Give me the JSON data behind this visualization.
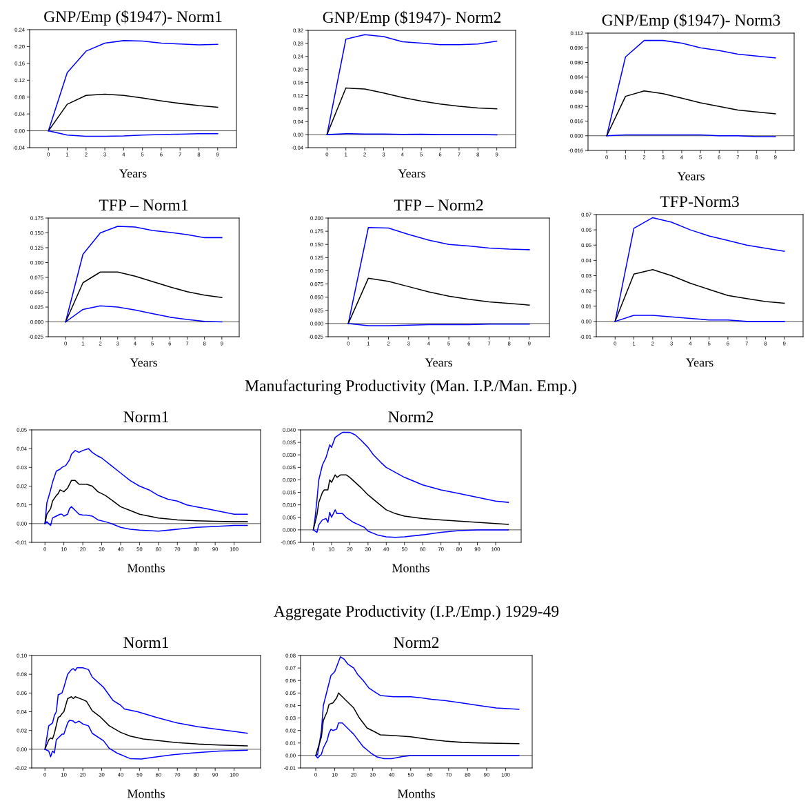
{
  "chart_data": [
    {
      "type": "line",
      "title": "GNP/Emp ($1947)- Norm1",
      "xlabel": "Years",
      "x": [
        0,
        1,
        2,
        3,
        4,
        5,
        6,
        7,
        8,
        9
      ],
      "xlim": [
        -1,
        10
      ],
      "xticks": [
        0,
        1,
        2,
        3,
        4,
        5,
        6,
        7,
        8,
        9
      ],
      "ylim": [
        -0.04,
        0.24
      ],
      "yticks": [
        {
          "value": -0.04,
          "label": "-0.04"
        },
        {
          "value": 0,
          "label": "0.00"
        },
        {
          "value": 0.04,
          "label": "0.04"
        },
        {
          "value": 0.08,
          "label": "0.08"
        },
        {
          "value": 0.12,
          "label": "0.12"
        },
        {
          "value": 0.16,
          "label": "0.16"
        },
        {
          "value": 0.2,
          "label": "0.20"
        },
        {
          "value": 0.24,
          "label": "0.24"
        }
      ],
      "ref_lines": [
        {
          "axis": "y",
          "value": 0,
          "color": "#000000"
        }
      ],
      "series": [
        {
          "color": "#0000ff",
          "values": [
            0,
            0.138,
            0.189,
            0.208,
            0.214,
            0.213,
            0.208,
            0.206,
            0.204,
            0.205
          ]
        },
        {
          "color": "#000000",
          "values": [
            0,
            0.063,
            0.084,
            0.087,
            0.084,
            0.078,
            0.071,
            0.065,
            0.06,
            0.056
          ]
        },
        {
          "color": "#0000ff",
          "values": [
            0,
            -0.01,
            -0.013,
            -0.013,
            -0.012,
            -0.01,
            -0.009,
            -0.008,
            -0.007,
            -0.007
          ]
        }
      ]
    },
    {
      "type": "line",
      "title": "GNP/Emp ($1947)- Norm2",
      "xlabel": "Years",
      "x": [
        0,
        1,
        2,
        3,
        4,
        5,
        6,
        7,
        8,
        9
      ],
      "xlim": [
        -1,
        10
      ],
      "xticks": [
        0,
        1,
        2,
        3,
        4,
        5,
        6,
        7,
        8,
        9
      ],
      "ylim": [
        -0.04,
        0.32
      ],
      "yticks": [
        {
          "value": -0.04,
          "label": "-0.04"
        },
        {
          "value": 0,
          "label": "0.00"
        },
        {
          "value": 0.04,
          "label": "0.04"
        },
        {
          "value": 0.08,
          "label": "0.08"
        },
        {
          "value": 0.12,
          "label": "0.12"
        },
        {
          "value": 0.16,
          "label": "0.16"
        },
        {
          "value": 0.2,
          "label": "0.20"
        },
        {
          "value": 0.24,
          "label": "0.24"
        },
        {
          "value": 0.28,
          "label": "0.28"
        },
        {
          "value": 0.32,
          "label": "0.32"
        }
      ],
      "ref_lines": [
        {
          "axis": "y",
          "value": 0,
          "color": "#000000"
        }
      ],
      "series": [
        {
          "color": "#0000ff",
          "values": [
            0,
            0.293,
            0.307,
            0.301,
            0.285,
            0.281,
            0.276,
            0.276,
            0.278,
            0.287
          ]
        },
        {
          "color": "#000000",
          "values": [
            0,
            0.143,
            0.14,
            0.128,
            0.114,
            0.103,
            0.094,
            0.087,
            0.082,
            0.079
          ]
        },
        {
          "color": "#0000ff",
          "values": [
            0,
            0.003,
            0.002,
            0.002,
            0.001,
            0.001,
            0,
            0,
            0,
            -0.001
          ]
        }
      ]
    },
    {
      "type": "line",
      "title": "GNP/Emp ($1947)- Norm3",
      "xlabel": "Years",
      "x": [
        0,
        1,
        2,
        3,
        4,
        5,
        6,
        7,
        8,
        9
      ],
      "xlim": [
        -1,
        10
      ],
      "xticks": [
        0,
        1,
        2,
        3,
        4,
        5,
        6,
        7,
        8,
        9
      ],
      "ylim": [
        -0.016,
        0.112
      ],
      "yticks": [
        {
          "value": -0.016,
          "label": "-0.016"
        },
        {
          "value": 0,
          "label": "0.000"
        },
        {
          "value": 0.016,
          "label": "0.016"
        },
        {
          "value": 0.032,
          "label": "0.032"
        },
        {
          "value": 0.048,
          "label": "0.048"
        },
        {
          "value": 0.064,
          "label": "0.064"
        },
        {
          "value": 0.08,
          "label": "0.080"
        },
        {
          "value": 0.096,
          "label": "0.096"
        },
        {
          "value": 0.112,
          "label": "0.112"
        }
      ],
      "ref_lines": [
        {
          "axis": "y",
          "value": 0,
          "color": "#000000"
        }
      ],
      "series": [
        {
          "color": "#0000ff",
          "values": [
            0,
            0.086,
            0.104,
            0.104,
            0.101,
            0.096,
            0.093,
            0.089,
            0.087,
            0.085
          ]
        },
        {
          "color": "#000000",
          "values": [
            0,
            0.043,
            0.049,
            0.046,
            0.041,
            0.036,
            0.032,
            0.028,
            0.026,
            0.024
          ]
        },
        {
          "color": "#0000ff",
          "values": [
            0,
            0.001,
            0.001,
            0.001,
            0.001,
            0.001,
            0,
            0,
            -0.001,
            -0.001
          ]
        }
      ]
    },
    {
      "type": "line",
      "title": "TFP – Norm1",
      "xlabel": "Years",
      "x": [
        0,
        1,
        2,
        3,
        4,
        5,
        6,
        7,
        8,
        9
      ],
      "xlim": [
        -1,
        10
      ],
      "xticks": [
        0,
        1,
        2,
        3,
        4,
        5,
        6,
        7,
        8,
        9
      ],
      "ylim": [
        -0.025,
        0.175
      ],
      "yticks": [
        {
          "value": -0.025,
          "label": "-0.025"
        },
        {
          "value": 0,
          "label": "0.000"
        },
        {
          "value": 0.025,
          "label": "0.025"
        },
        {
          "value": 0.05,
          "label": "0.050"
        },
        {
          "value": 0.075,
          "label": "0.075"
        },
        {
          "value": 0.1,
          "label": "0.100"
        },
        {
          "value": 0.125,
          "label": "0.125"
        },
        {
          "value": 0.15,
          "label": "0.150"
        },
        {
          "value": 0.175,
          "label": "0.175"
        }
      ],
      "ref_lines": [
        {
          "axis": "y",
          "value": 0,
          "color": "#000000"
        }
      ],
      "series": [
        {
          "color": "#0000ff",
          "values": [
            0,
            0.114,
            0.15,
            0.161,
            0.16,
            0.154,
            0.151,
            0.147,
            0.142,
            0.142
          ]
        },
        {
          "color": "#000000",
          "values": [
            0,
            0.066,
            0.084,
            0.084,
            0.077,
            0.068,
            0.059,
            0.051,
            0.045,
            0.041
          ]
        },
        {
          "color": "#0000ff",
          "values": [
            0,
            0.021,
            0.027,
            0.025,
            0.02,
            0.014,
            0.008,
            0.004,
            0.001,
            0
          ]
        }
      ]
    },
    {
      "type": "line",
      "title": "TFP – Norm2",
      "xlabel": "Years",
      "x": [
        0,
        1,
        2,
        3,
        4,
        5,
        6,
        7,
        8,
        9
      ],
      "xlim": [
        -1,
        10
      ],
      "xticks": [
        0,
        1,
        2,
        3,
        4,
        5,
        6,
        7,
        8,
        9
      ],
      "ylim": [
        -0.025,
        0.2
      ],
      "yticks": [
        {
          "value": -0.025,
          "label": "-0.025"
        },
        {
          "value": 0,
          "label": "0.000"
        },
        {
          "value": 0.025,
          "label": "0.025"
        },
        {
          "value": 0.05,
          "label": "0.050"
        },
        {
          "value": 0.075,
          "label": "0.075"
        },
        {
          "value": 0.1,
          "label": "0.100"
        },
        {
          "value": 0.125,
          "label": "0.125"
        },
        {
          "value": 0.15,
          "label": "0.150"
        },
        {
          "value": 0.175,
          "label": "0.175"
        },
        {
          "value": 0.2,
          "label": "0.200"
        }
      ],
      "ref_lines": [
        {
          "axis": "y",
          "value": 0,
          "color": "#000000"
        }
      ],
      "series": [
        {
          "color": "#0000ff",
          "values": [
            0,
            0.182,
            0.181,
            0.169,
            0.158,
            0.15,
            0.147,
            0.143,
            0.141,
            0.14
          ]
        },
        {
          "color": "#000000",
          "values": [
            0,
            0.086,
            0.08,
            0.07,
            0.06,
            0.052,
            0.046,
            0.041,
            0.038,
            0.035
          ]
        },
        {
          "color": "#0000ff",
          "values": [
            0,
            -0.004,
            -0.004,
            -0.003,
            -0.002,
            -0.002,
            -0.002,
            -0.001,
            -0.001,
            -0.001
          ]
        }
      ]
    },
    {
      "type": "line",
      "title": "TFP-Norm3",
      "xlabel": "Years",
      "x": [
        0,
        1,
        2,
        3,
        4,
        5,
        6,
        7,
        8,
        9
      ],
      "xlim": [
        -1,
        10
      ],
      "xticks": [
        0,
        1,
        2,
        3,
        4,
        5,
        6,
        7,
        8,
        9
      ],
      "ylim": [
        -0.01,
        0.07
      ],
      "yticks": [
        {
          "value": -0.01,
          "label": "-0.01"
        },
        {
          "value": 0,
          "label": "0.00"
        },
        {
          "value": 0.01,
          "label": "0.01"
        },
        {
          "value": 0.02,
          "label": "0.02"
        },
        {
          "value": 0.03,
          "label": "0.03"
        },
        {
          "value": 0.04,
          "label": "0.04"
        },
        {
          "value": 0.05,
          "label": "0.05"
        },
        {
          "value": 0.06,
          "label": "0.06"
        },
        {
          "value": 0.07,
          "label": "0.07"
        }
      ],
      "ref_lines": [
        {
          "axis": "y",
          "value": 0,
          "color": "#000000"
        }
      ],
      "series": [
        {
          "color": "#0000ff",
          "values": [
            0,
            0.061,
            0.068,
            0.065,
            0.06,
            0.056,
            0.053,
            0.05,
            0.048,
            0.046
          ]
        },
        {
          "color": "#000000",
          "values": [
            0,
            0.031,
            0.034,
            0.03,
            0.025,
            0.021,
            0.017,
            0.015,
            0.013,
            0.012
          ]
        },
        {
          "color": "#0000ff",
          "values": [
            0,
            0.004,
            0.004,
            0.003,
            0.002,
            0.001,
            0.001,
            0,
            0,
            0
          ]
        }
      ]
    },
    {
      "type": "line",
      "title": "Norm1",
      "xlabel": "Months",
      "xlim": [
        -7,
        114
      ],
      "xticks": [
        0,
        10,
        20,
        30,
        40,
        50,
        60,
        70,
        80,
        90,
        100
      ],
      "ylim": [
        -0.01,
        0.05
      ],
      "yticks": [
        {
          "value": -0.01,
          "label": "-0.01"
        },
        {
          "value": 0,
          "label": "0.00"
        },
        {
          "value": 0.01,
          "label": "0.01"
        },
        {
          "value": 0.02,
          "label": "0.02"
        },
        {
          "value": 0.03,
          "label": "0.03"
        },
        {
          "value": 0.04,
          "label": "0.04"
        },
        {
          "value": 0.05,
          "label": "0.05"
        }
      ],
      "ref_lines": [
        {
          "axis": "y",
          "value": 0,
          "color": "#000000"
        }
      ],
      "series": [
        {
          "color": "#0000ff",
          "x": [
            0,
            1,
            3,
            4,
            6,
            8,
            9,
            11,
            13,
            14,
            16,
            18,
            20,
            23,
            25,
            28,
            30,
            35,
            40,
            45,
            50,
            55,
            60,
            65,
            70,
            75,
            80,
            85,
            90,
            95,
            100,
            107
          ],
          "values": [
            0,
            0.011,
            0.018,
            0.022,
            0.028,
            0.029,
            0.03,
            0.031,
            0.034,
            0.037,
            0.039,
            0.038,
            0.039,
            0.04,
            0.038,
            0.036,
            0.035,
            0.031,
            0.027,
            0.023,
            0.02,
            0.018,
            0.015,
            0.013,
            0.012,
            0.01,
            0.009,
            0.008,
            0.007,
            0.006,
            0.005,
            0.005
          ]
        },
        {
          "color": "#000000",
          "x": [
            0,
            1,
            3,
            4,
            6,
            7,
            8,
            10,
            12,
            14,
            16,
            18,
            22,
            25,
            28,
            32,
            36,
            40,
            45,
            50,
            55,
            60,
            70,
            80,
            90,
            100,
            107
          ],
          "values": [
            0,
            0.005,
            0.008,
            0.012,
            0.015,
            0.016,
            0.018,
            0.017,
            0.019,
            0.023,
            0.023,
            0.021,
            0.021,
            0.02,
            0.017,
            0.015,
            0.012,
            0.009,
            0.007,
            0.005,
            0.004,
            0.003,
            0.002,
            0.0015,
            0.0012,
            0.001,
            0.001
          ]
        },
        {
          "color": "#0000ff",
          "x": [
            0,
            1,
            2,
            3,
            4,
            6,
            8,
            9,
            10,
            12,
            13,
            14,
            16,
            18,
            20,
            22,
            25,
            28,
            32,
            35,
            40,
            45,
            50,
            60,
            70,
            80,
            90,
            100,
            107
          ],
          "values": [
            0,
            0.001,
            0,
            -0.001,
            0.003,
            0.004,
            0.005,
            0.005,
            0.004,
            0.005,
            0.008,
            0.009,
            0.007,
            0.005,
            0.0045,
            0.0045,
            0.004,
            0.002,
            0.001,
            0,
            -0.002,
            -0.003,
            -0.0035,
            -0.004,
            -0.003,
            -0.002,
            -0.0015,
            -0.001,
            -0.001
          ]
        }
      ]
    },
    {
      "type": "line",
      "subtitle": "Manufacturing Productivity (Man. I.P./Man. Emp.)",
      "title": "Norm2",
      "xlabel": "Months",
      "xlim": [
        -7,
        114
      ],
      "xticks": [
        0,
        10,
        20,
        30,
        40,
        50,
        60,
        70,
        80,
        90,
        100
      ],
      "ylim": [
        -0.005,
        0.04
      ],
      "yticks": [
        {
          "value": -0.005,
          "label": "-0.005"
        },
        {
          "value": 0,
          "label": "0.000"
        },
        {
          "value": 0.005,
          "label": "0.005"
        },
        {
          "value": 0.01,
          "label": "0.010"
        },
        {
          "value": 0.015,
          "label": "0.015"
        },
        {
          "value": 0.02,
          "label": "0.020"
        },
        {
          "value": 0.025,
          "label": "0.025"
        },
        {
          "value": 0.03,
          "label": "0.030"
        },
        {
          "value": 0.035,
          "label": "0.035"
        },
        {
          "value": 0.04,
          "label": "0.040"
        }
      ],
      "ref_lines": [
        {
          "axis": "y",
          "value": 0,
          "color": "#000000"
        }
      ],
      "series": [
        {
          "color": "#0000ff",
          "x": [
            0,
            1,
            2,
            3,
            5,
            7,
            9,
            10,
            12,
            14,
            16,
            20,
            23,
            26,
            30,
            33,
            37,
            40,
            45,
            50,
            55,
            60,
            70,
            80,
            90,
            100,
            107
          ],
          "values": [
            0,
            0.005,
            0.012,
            0.02,
            0.026,
            0.029,
            0.034,
            0.033,
            0.037,
            0.038,
            0.039,
            0.039,
            0.038,
            0.036,
            0.033,
            0.03,
            0.027,
            0.025,
            0.023,
            0.021,
            0.0195,
            0.018,
            0.016,
            0.0145,
            0.013,
            0.0115,
            0.011
          ]
        },
        {
          "color": "#000000",
          "x": [
            0,
            2,
            3,
            5,
            6,
            8,
            9,
            10,
            12,
            13,
            15,
            18,
            20,
            23,
            26,
            30,
            35,
            40,
            45,
            50,
            60,
            70,
            80,
            90,
            100,
            107
          ],
          "values": [
            0,
            0.006,
            0.011,
            0.015,
            0.016,
            0.016,
            0.02,
            0.019,
            0.022,
            0.021,
            0.022,
            0.022,
            0.021,
            0.019,
            0.017,
            0.014,
            0.011,
            0.008,
            0.0065,
            0.0055,
            0.0045,
            0.004,
            0.0035,
            0.003,
            0.0025,
            0.0022
          ]
        },
        {
          "color": "#0000ff",
          "x": [
            0,
            2,
            3,
            5,
            7,
            8,
            9,
            10,
            12,
            13,
            16,
            18,
            20,
            22,
            25,
            28,
            30,
            35,
            40,
            45,
            50,
            60,
            70,
            80,
            90,
            107
          ],
          "values": [
            0,
            -0.001,
            0.002,
            0.004,
            0.0045,
            0.003,
            0.007,
            0.005,
            0.008,
            0.0065,
            0.0065,
            0.005,
            0.004,
            0.003,
            0.002,
            0.001,
            -0.0005,
            -0.002,
            -0.0028,
            -0.003,
            -0.0028,
            -0.002,
            -0.001,
            -0.0003,
            0,
            0
          ]
        }
      ]
    },
    {
      "type": "line",
      "title": "Norm1",
      "xlabel": "Months",
      "xlim": [
        -7,
        114
      ],
      "xticks": [
        0,
        10,
        20,
        30,
        40,
        50,
        60,
        70,
        80,
        90,
        100
      ],
      "ylim": [
        -0.02,
        0.1
      ],
      "yticks": [
        {
          "value": -0.02,
          "label": "-0.02"
        },
        {
          "value": 0,
          "label": "0.00"
        },
        {
          "value": 0.02,
          "label": "0.02"
        },
        {
          "value": 0.04,
          "label": "0.04"
        },
        {
          "value": 0.06,
          "label": "0.06"
        },
        {
          "value": 0.08,
          "label": "0.08"
        },
        {
          "value": 0.1,
          "label": "0.10"
        }
      ],
      "ref_lines": [
        {
          "axis": "y",
          "value": 0,
          "color": "#000000"
        }
      ],
      "series": [
        {
          "color": "#0000ff",
          "x": [
            0,
            2,
            4,
            5,
            6,
            7,
            9,
            10,
            12,
            14,
            15,
            16,
            17,
            20,
            23,
            25,
            31,
            36,
            40,
            42,
            49,
            59,
            70,
            81,
            92,
            100,
            107
          ],
          "values": [
            0,
            0.025,
            0.028,
            0.036,
            0.04,
            0.058,
            0.06,
            0.066,
            0.08,
            0.085,
            0.086,
            0.084,
            0.087,
            0.087,
            0.085,
            0.077,
            0.066,
            0.052,
            0.047,
            0.043,
            0.04,
            0.034,
            0.028,
            0.024,
            0.021,
            0.019,
            0.017
          ]
        },
        {
          "color": "#000000",
          "x": [
            0,
            2,
            3,
            4,
            5,
            7,
            8,
            9,
            10,
            12,
            14,
            15,
            16,
            20,
            22,
            25,
            29,
            34,
            40,
            45,
            52,
            59,
            70,
            81,
            92,
            107
          ],
          "values": [
            0,
            0.01,
            0.012,
            0.011,
            0.017,
            0.034,
            0.035,
            0.038,
            0.04,
            0.054,
            0.056,
            0.054,
            0.056,
            0.053,
            0.051,
            0.041,
            0.035,
            0.025,
            0.018,
            0.014,
            0.011,
            0.0095,
            0.007,
            0.0055,
            0.0045,
            0.0035
          ]
        },
        {
          "color": "#0000ff",
          "x": [
            0,
            2,
            3,
            4,
            5,
            6,
            7,
            9,
            10,
            12,
            13,
            15,
            16,
            18,
            20,
            23,
            25,
            31,
            34,
            38,
            45,
            51,
            56,
            67,
            78,
            92,
            107
          ],
          "values": [
            0,
            -0.002,
            -0.008,
            -0.002,
            -0.004,
            0.01,
            0.012,
            0.016,
            0.016,
            0.028,
            0.031,
            0.03,
            0.028,
            0.03,
            0.027,
            0.025,
            0.017,
            0.009,
            0.001,
            -0.004,
            -0.01,
            -0.0105,
            -0.009,
            -0.006,
            -0.004,
            -0.002,
            -0.001
          ]
        }
      ]
    },
    {
      "type": "line",
      "subtitle": "Aggregate Productivity (I.P./Emp.) 1929-49",
      "title": "Norm2",
      "xlabel": "Months",
      "xlim": [
        -8,
        114
      ],
      "xticks": [
        0,
        10,
        20,
        30,
        40,
        50,
        60,
        70,
        80,
        90,
        100
      ],
      "ylim": [
        -0.01,
        0.08
      ],
      "yticks": [
        {
          "value": -0.01,
          "label": "-0.01"
        },
        {
          "value": 0,
          "label": "0.00"
        },
        {
          "value": 0.01,
          "label": "0.01"
        },
        {
          "value": 0.02,
          "label": "0.02"
        },
        {
          "value": 0.03,
          "label": "0.03"
        },
        {
          "value": 0.04,
          "label": "0.04"
        },
        {
          "value": 0.05,
          "label": "0.05"
        },
        {
          "value": 0.06,
          "label": "0.06"
        },
        {
          "value": 0.07,
          "label": "0.07"
        },
        {
          "value": 0.08,
          "label": "0.08"
        }
      ],
      "ref_lines": [
        {
          "axis": "y",
          "value": 0,
          "color": "#000000"
        }
      ],
      "series": [
        {
          "color": "#0000ff",
          "x": [
            0,
            1,
            3,
            4,
            6,
            8,
            10,
            12,
            13,
            15,
            17,
            20,
            22,
            25,
            28,
            31,
            34,
            41,
            50,
            56,
            61,
            68,
            77,
            86,
            95,
            107
          ],
          "values": [
            0,
            0.001,
            0.02,
            0.04,
            0.052,
            0.064,
            0.067,
            0.075,
            0.079,
            0.077,
            0.073,
            0.07,
            0.065,
            0.06,
            0.054,
            0.051,
            0.048,
            0.047,
            0.047,
            0.046,
            0.045,
            0.044,
            0.042,
            0.04,
            0.038,
            0.037
          ]
        },
        {
          "color": "#000000",
          "x": [
            0,
            3,
            4,
            6,
            7,
            9,
            11,
            12,
            14,
            16,
            20,
            23,
            27,
            31,
            34,
            41,
            50,
            59,
            68,
            77,
            86,
            107
          ],
          "values": [
            0,
            0.015,
            0.028,
            0.035,
            0.041,
            0.042,
            0.046,
            0.05,
            0.047,
            0.044,
            0.038,
            0.03,
            0.022,
            0.019,
            0.0165,
            0.016,
            0.015,
            0.013,
            0.0115,
            0.0105,
            0.01,
            0.0095
          ]
        },
        {
          "color": "#0000ff",
          "x": [
            0,
            1,
            3,
            4,
            6,
            7,
            8,
            9,
            11,
            12,
            14,
            16,
            20,
            22,
            25,
            29,
            32,
            36,
            40,
            45,
            50,
            68,
            107
          ],
          "values": [
            0,
            -0.002,
            0.001,
            0.006,
            0.012,
            0.018,
            0.021,
            0.02,
            0.021,
            0.026,
            0.026,
            0.023,
            0.017,
            0.013,
            0.007,
            0.002,
            -0.001,
            -0.0025,
            -0.0025,
            -0.001,
            0,
            0,
            0
          ]
        }
      ]
    }
  ]
}
